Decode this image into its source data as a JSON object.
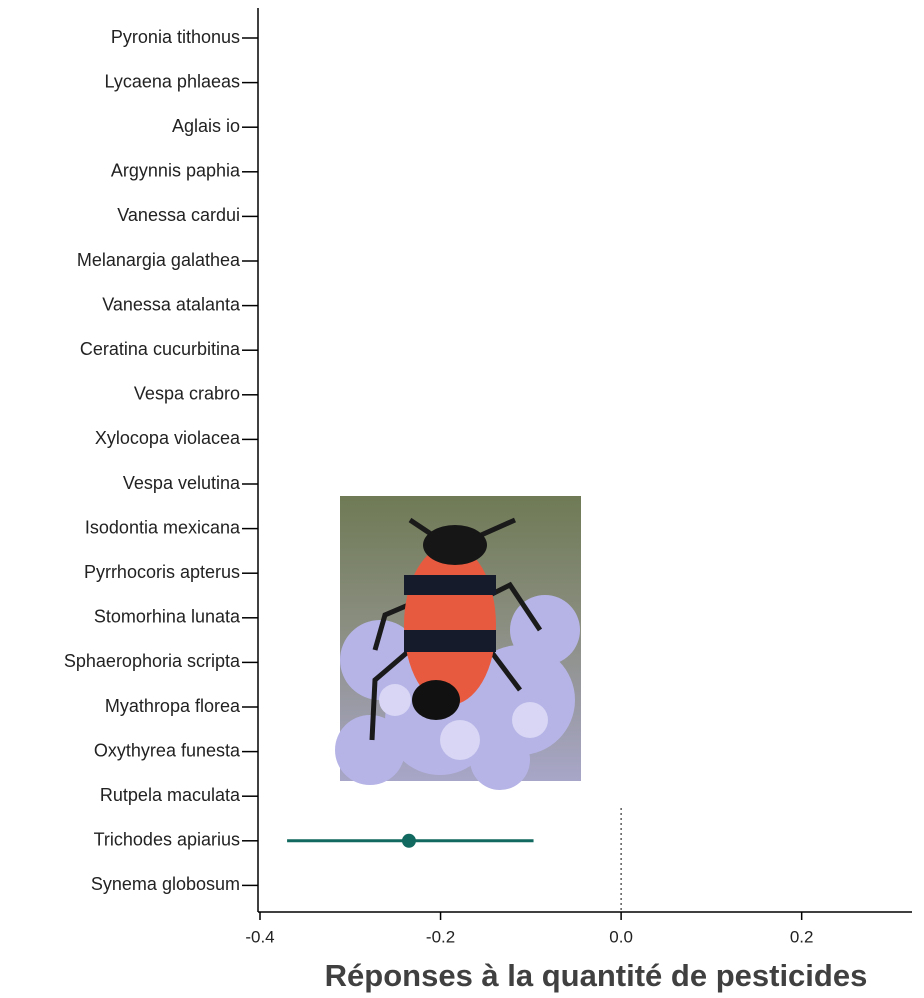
{
  "chart_data": {
    "type": "forest",
    "title": "Réponses à la quantité de pesticides",
    "categories": [
      "Pyronia tithonus",
      "Lycaena phlaeas",
      "Aglais io",
      "Argynnis paphia",
      "Vanessa cardui",
      "Melanargia galathea",
      "Vanessa atalanta",
      "Ceratina cucurbitina",
      "Vespa crabro",
      "Xylocopa violacea",
      "Vespa velutina",
      "Isodontia mexicana",
      "Pyrrhocoris apterus",
      "Stomorhina lunata",
      "Sphaerophoria scripta",
      "Myathropa florea",
      "Oxythyrea funesta",
      "Rutpela maculata",
      "Trichodes apiarius",
      "Synema globosum"
    ],
    "series": [
      {
        "color": "#11695f",
        "values": [
          null,
          null,
          null,
          null,
          null,
          null,
          null,
          null,
          null,
          null,
          null,
          null,
          null,
          null,
          null,
          null,
          null,
          null,
          -0.235,
          null
        ],
        "ci_low": [
          null,
          null,
          null,
          null,
          null,
          null,
          null,
          null,
          null,
          null,
          null,
          null,
          null,
          null,
          null,
          null,
          null,
          null,
          -0.37,
          null
        ],
        "ci_high": [
          null,
          null,
          null,
          null,
          null,
          null,
          null,
          null,
          null,
          null,
          null,
          null,
          null,
          null,
          null,
          null,
          null,
          null,
          -0.097,
          null
        ]
      }
    ],
    "xlim": [
      -0.4,
      0.32
    ],
    "xticks": [
      {
        "value": -0.4,
        "label": "-0.4"
      },
      {
        "value": -0.2,
        "label": "-0.2"
      },
      {
        "value": 0,
        "label": "0.0"
      },
      {
        "value": 0.2,
        "label": "0.2"
      }
    ],
    "reference_line": 0
  }
}
